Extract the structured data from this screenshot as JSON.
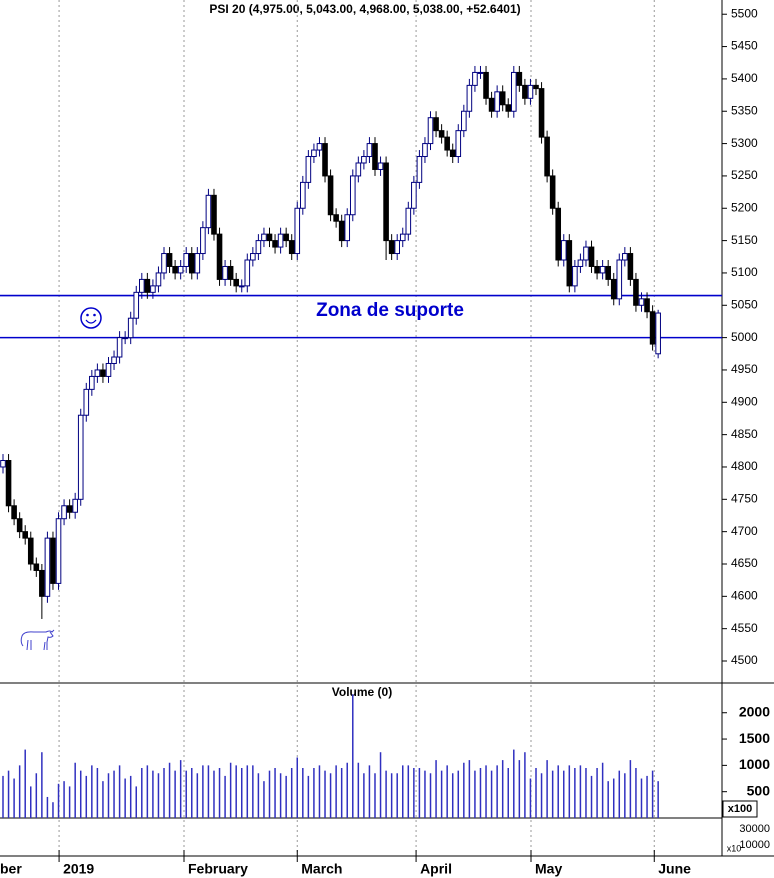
{
  "chart_data": [
    {
      "type": "candlestick",
      "title": "PSI 20 (4,975.00, 5,043.00, 4,968.00, 5,038.00, +52.6401)",
      "open": [
        4800,
        4810,
        4740,
        4720,
        4700,
        4690,
        4650,
        4640,
        4600,
        4690,
        4620,
        4720,
        4740,
        4730,
        4750,
        4880,
        4920,
        4940,
        4950,
        4940,
        4960,
        4970,
        5000,
        5000,
        5030,
        5070,
        5090,
        5070,
        5080,
        5100,
        5130,
        5110,
        5100,
        5110,
        5130,
        5100,
        5130,
        5170,
        5220,
        5160,
        5090,
        5110,
        5090,
        5080,
        5080,
        5120,
        5130,
        5150,
        5160,
        5150,
        5140,
        5160,
        5150,
        5130,
        5200,
        5240,
        5280,
        5290,
        5300,
        5250,
        5190,
        5180,
        5150,
        5190,
        5250,
        5270,
        5280,
        5300,
        5260,
        5270,
        5150,
        5130,
        5150,
        5160,
        5200,
        5240,
        5280,
        5300,
        5340,
        5320,
        5310,
        5290,
        5280,
        5320,
        5350,
        5390,
        5410,
        5410,
        5370,
        5350,
        5380,
        5360,
        5350,
        5410,
        5390,
        5370,
        5390,
        5385,
        5310,
        5250,
        5200,
        5120,
        5150,
        5080,
        5110,
        5120,
        5140,
        5110,
        5100,
        5110,
        5090,
        5060,
        5120,
        5130,
        5090,
        5050,
        5060,
        5040,
        4975
      ],
      "high": [
        4820,
        4820,
        4750,
        4730,
        4710,
        4700,
        4660,
        4650,
        4700,
        4700,
        4730,
        4750,
        4750,
        4760,
        4890,
        4930,
        4950,
        4960,
        4960,
        4970,
        4980,
        5010,
        5010,
        5040,
        5080,
        5100,
        5100,
        5090,
        5110,
        5140,
        5140,
        5120,
        5120,
        5140,
        5140,
        5140,
        5180,
        5230,
        5230,
        5170,
        5120,
        5120,
        5100,
        5090,
        5130,
        5140,
        5160,
        5170,
        5170,
        5160,
        5170,
        5170,
        5160,
        5210,
        5250,
        5290,
        5300,
        5310,
        5310,
        5260,
        5200,
        5190,
        5200,
        5260,
        5280,
        5290,
        5310,
        5310,
        5280,
        5280,
        5160,
        5160,
        5170,
        5210,
        5250,
        5290,
        5310,
        5350,
        5350,
        5330,
        5320,
        5300,
        5330,
        5360,
        5400,
        5420,
        5420,
        5420,
        5380,
        5390,
        5390,
        5370,
        5420,
        5420,
        5400,
        5400,
        5400,
        5395,
        5320,
        5260,
        5210,
        5160,
        5160,
        5120,
        5130,
        5150,
        5150,
        5120,
        5120,
        5120,
        5100,
        5130,
        5140,
        5140,
        5100,
        5070,
        5070,
        5050,
        5043
      ],
      "low": [
        4790,
        4730,
        4710,
        4690,
        4680,
        4640,
        4630,
        4565,
        4590,
        4610,
        4610,
        4710,
        4720,
        4720,
        4740,
        4870,
        4910,
        4930,
        4930,
        4930,
        4950,
        4960,
        4990,
        4990,
        5020,
        5060,
        5060,
        5060,
        5070,
        5090,
        5100,
        5090,
        5090,
        5100,
        5090,
        5090,
        5120,
        5160,
        5150,
        5080,
        5080,
        5080,
        5070,
        5070,
        5070,
        5110,
        5120,
        5140,
        5140,
        5130,
        5130,
        5140,
        5120,
        5120,
        5190,
        5230,
        5270,
        5280,
        5240,
        5180,
        5170,
        5140,
        5140,
        5180,
        5240,
        5260,
        5270,
        5250,
        5250,
        5120,
        5120,
        5120,
        5140,
        5150,
        5190,
        5230,
        5270,
        5290,
        5310,
        5300,
        5280,
        5270,
        5270,
        5310,
        5340,
        5380,
        5400,
        5360,
        5340,
        5340,
        5350,
        5340,
        5340,
        5380,
        5360,
        5360,
        5375,
        5300,
        5240,
        5190,
        5110,
        5110,
        5070,
        5070,
        5100,
        5110,
        5100,
        5090,
        5090,
        5080,
        5050,
        5050,
        5110,
        5080,
        5040,
        5040,
        5030,
        4980,
        4968
      ],
      "close": [
        4810,
        4740,
        4720,
        4700,
        4690,
        4650,
        4640,
        4600,
        4690,
        4620,
        4720,
        4740,
        4730,
        4750,
        4880,
        4920,
        4940,
        4950,
        4940,
        4960,
        4970,
        5000,
        5000,
        5030,
        5070,
        5090,
        5070,
        5080,
        5100,
        5130,
        5110,
        5100,
        5110,
        5130,
        5100,
        5130,
        5170,
        5220,
        5160,
        5090,
        5110,
        5090,
        5080,
        5080,
        5120,
        5130,
        5150,
        5160,
        5150,
        5140,
        5160,
        5150,
        5130,
        5200,
        5240,
        5280,
        5290,
        5300,
        5250,
        5190,
        5180,
        5150,
        5190,
        5250,
        5270,
        5280,
        5300,
        5260,
        5270,
        5150,
        5130,
        5150,
        5160,
        5200,
        5240,
        5280,
        5300,
        5340,
        5320,
        5310,
        5290,
        5280,
        5320,
        5350,
        5390,
        5410,
        5410,
        5370,
        5350,
        5380,
        5360,
        5350,
        5410,
        5390,
        5370,
        5390,
        5385,
        5310,
        5250,
        5200,
        5120,
        5150,
        5080,
        5110,
        5120,
        5140,
        5110,
        5100,
        5110,
        5090,
        5060,
        5120,
        5130,
        5090,
        5050,
        5060,
        5040,
        4990,
        5038
      ],
      "up_color": "#ffffff",
      "down_color": "#000000",
      "outline_color": "#000080",
      "ylim": [
        4466,
        5522
      ],
      "yticks": [
        4500,
        4550,
        4600,
        4650,
        4700,
        4750,
        4800,
        4850,
        4900,
        4950,
        5000,
        5050,
        5100,
        5150,
        5200,
        5250,
        5300,
        5350,
        5400,
        5450,
        5500
      ],
      "xlim": [
        -0.54,
        129.5
      ],
      "xticks": [
        {
          "value": -10.5,
          "label": "ber"
        },
        {
          "value": 10.1,
          "label": "2019"
        },
        {
          "value": 32.6,
          "label": "February"
        },
        {
          "value": 53,
          "label": "March"
        },
        {
          "value": 74.4,
          "label": "April"
        },
        {
          "value": 95.1,
          "label": "May"
        },
        {
          "value": 117.3,
          "label": "June"
        }
      ],
      "hlines": [
        5065,
        5000
      ],
      "hline_color": "#0000cc",
      "annotation": "Zona de suporte"
    },
    {
      "type": "bar",
      "title": "Volume (0)",
      "unit_label": "x100",
      "color": "#3030c0",
      "values": [
        800,
        900,
        750,
        1000,
        1300,
        600,
        850,
        1250,
        400,
        300,
        650,
        700,
        600,
        1050,
        900,
        800,
        1000,
        950,
        700,
        850,
        900,
        1000,
        750,
        800,
        600,
        950,
        1000,
        900,
        850,
        950,
        1050,
        900,
        1100,
        900,
        950,
        850,
        1000,
        1000,
        900,
        950,
        800,
        1050,
        1000,
        950,
        1000,
        1000,
        850,
        700,
        900,
        950,
        850,
        800,
        950,
        1150,
        950,
        800,
        950,
        1000,
        900,
        850,
        1000,
        950,
        1050,
        2350,
        1050,
        850,
        1000,
        850,
        1250,
        900,
        850,
        850,
        1000,
        1000,
        950,
        950,
        900,
        850,
        1100,
        900,
        1000,
        850,
        900,
        1050,
        1100,
        900,
        950,
        1000,
        900,
        1000,
        1100,
        950,
        1300,
        1100,
        1250,
        750,
        950,
        850,
        1100,
        900,
        1000,
        900,
        1000,
        950,
        1000,
        950,
        800,
        950,
        1050,
        700,
        750,
        900,
        850,
        1100,
        950,
        750,
        800,
        900,
        700
      ],
      "ylim": [
        0,
        2565
      ],
      "yticks": [
        500,
        1000,
        1500,
        2000
      ]
    }
  ],
  "lower_pane": {
    "labels": [
      "30000",
      "10000"
    ],
    "unit_label": "x10"
  }
}
